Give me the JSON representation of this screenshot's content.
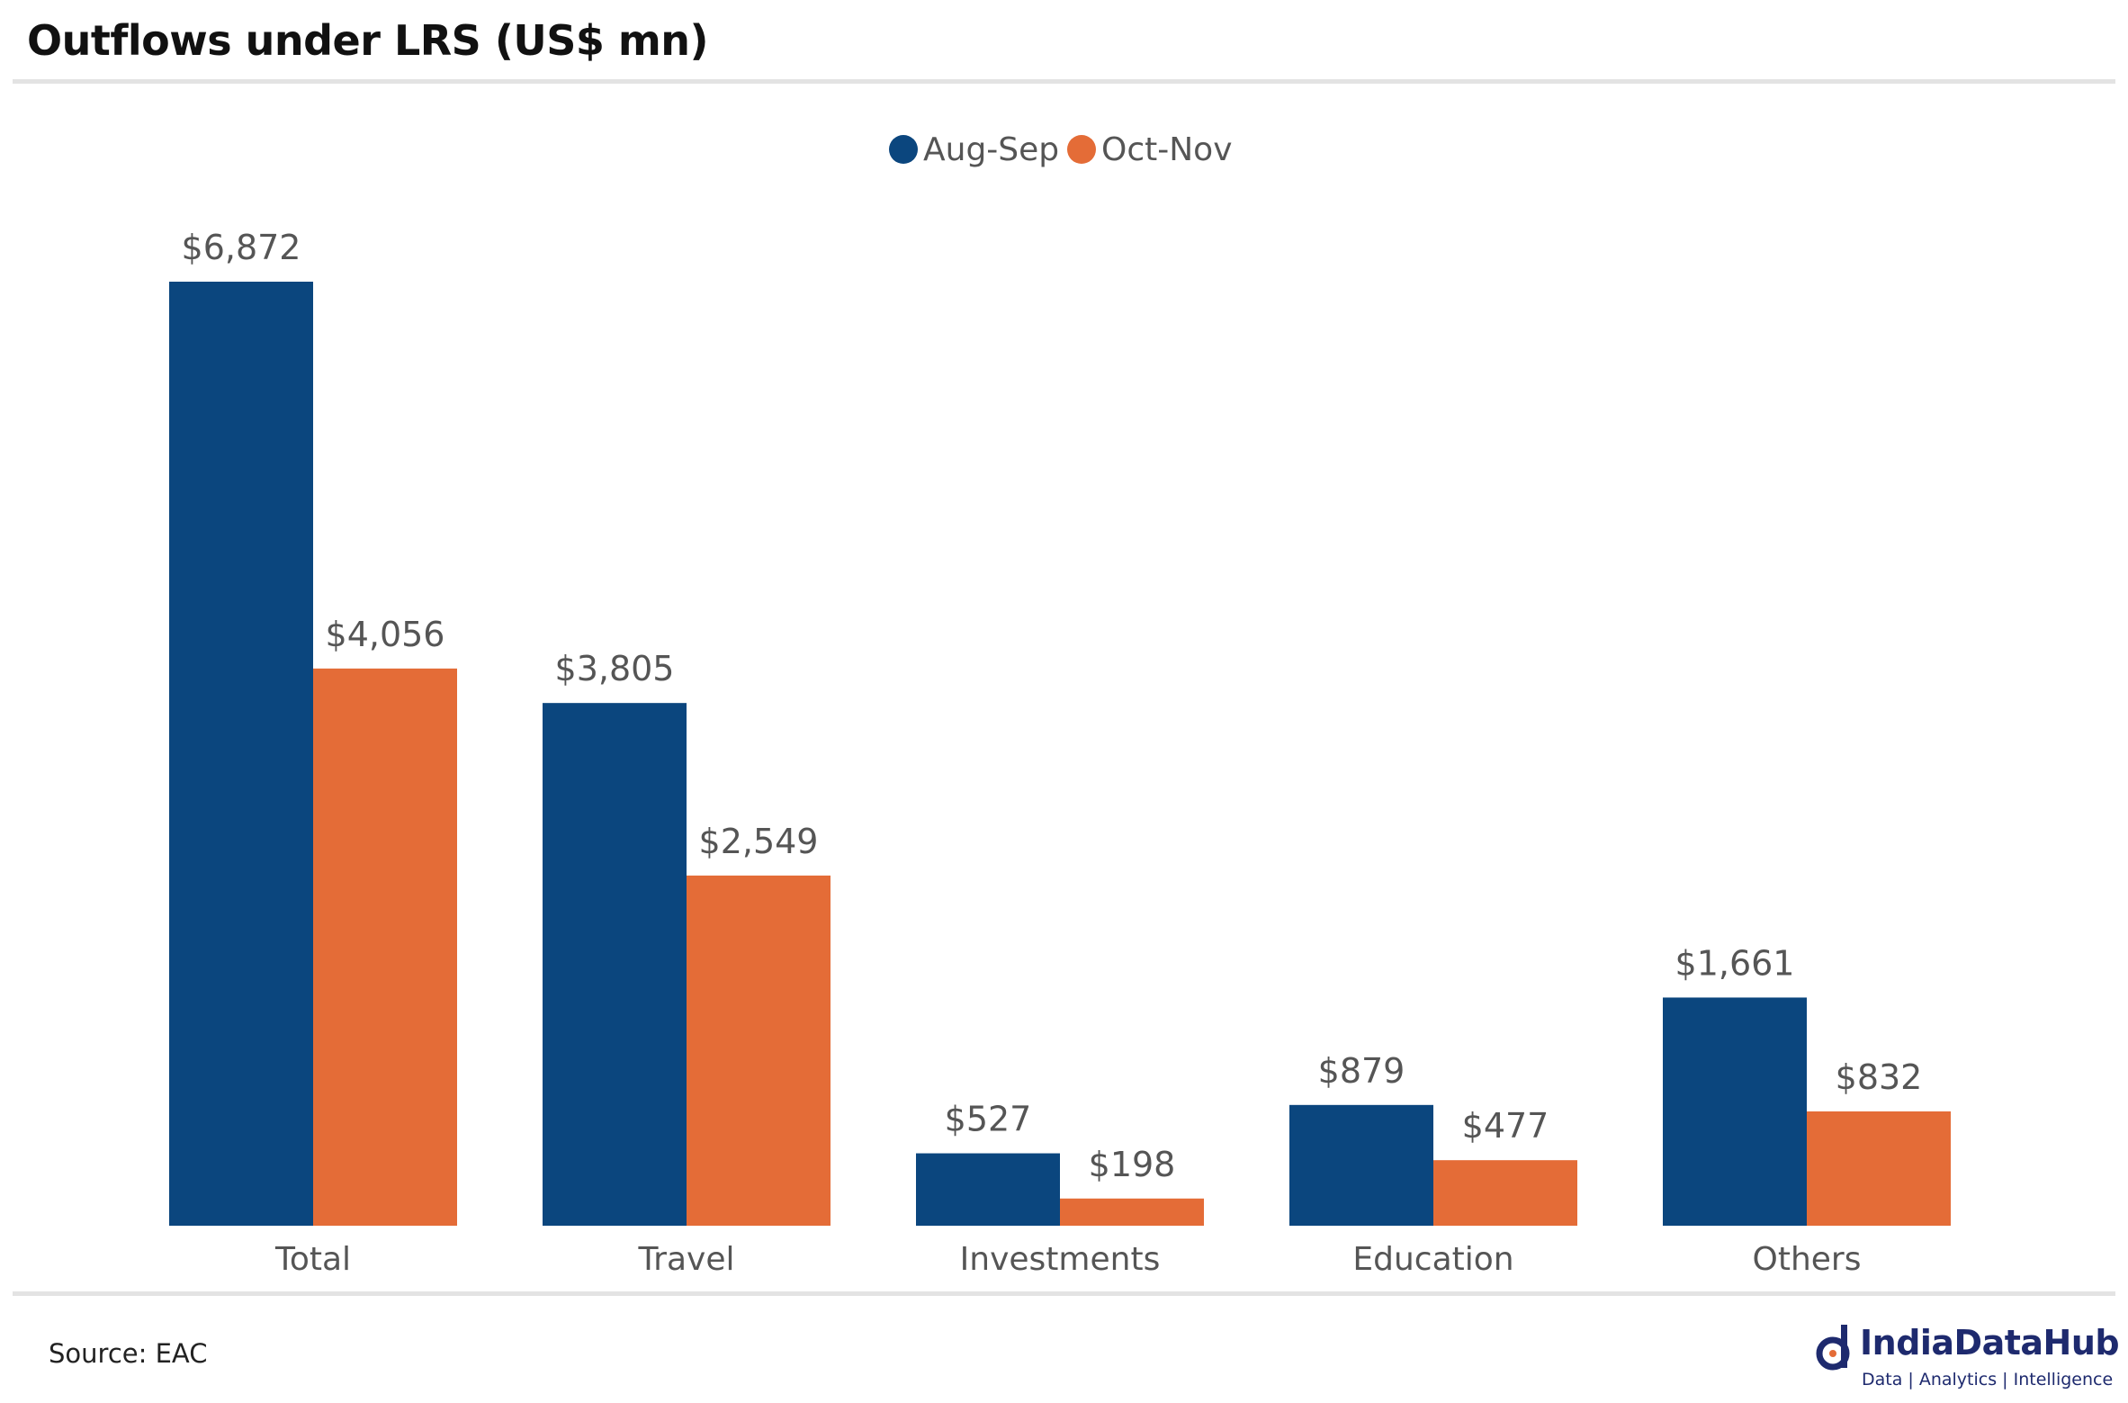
{
  "title": "Outflows under LRS (US$ mn)",
  "source": "Source: EAC",
  "logo": {
    "name": "IndiaDataHub",
    "tagline": "Data | Analytics | Intelligence"
  },
  "colors": {
    "aug_sep": "#0b467e",
    "oct_nov": "#e46c37",
    "rule": "#e3e3e3",
    "label_text": "#555555"
  },
  "chart_data": {
    "type": "bar",
    "title": "Outflows under LRS (US$ mn)",
    "categories": [
      "Total",
      "Travel",
      "Investments",
      "Education",
      "Others"
    ],
    "series": [
      {
        "name": "Aug-Sep",
        "values": [
          6872,
          3805,
          527,
          879,
          1661
        ],
        "labels": [
          "$6,872",
          "$3,805",
          "$527",
          "$879",
          "$1,661"
        ]
      },
      {
        "name": "Oct-Nov",
        "values": [
          4056,
          2549,
          198,
          477,
          832
        ],
        "labels": [
          "$4,056",
          "$2,549",
          "$198",
          "$477",
          "$832"
        ]
      }
    ],
    "ylim": [
      0,
      6872
    ],
    "grid": false,
    "legend": "top-center",
    "xlabel": "",
    "ylabel": ""
  }
}
